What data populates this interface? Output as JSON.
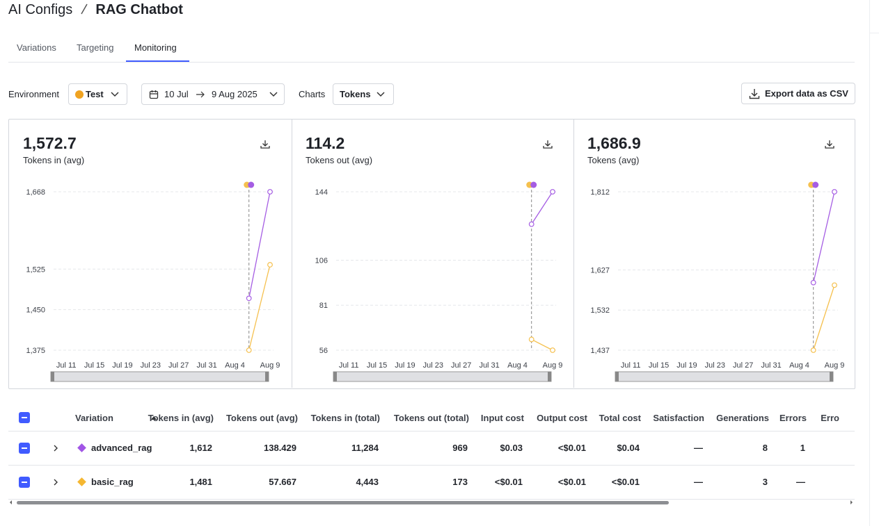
{
  "breadcrumb": [
    "AI Configs",
    "RAG Chatbot"
  ],
  "tabs": [
    "Variations",
    "Targeting",
    "Monitoring"
  ],
  "active_tab": 2,
  "filters": {
    "environment_label": "Environment",
    "environment": "Test",
    "environment_color": "#f0a321",
    "date_from": "10 Jul",
    "date_to": "9 Aug 2025",
    "charts_label": "Charts",
    "charts": "Tokens",
    "export": "Export data as CSV"
  },
  "chart_data": [
    {
      "type": "line",
      "headline": "1,572.7",
      "title": "Tokens in (avg)",
      "xlim": [
        "Jul 9",
        "Aug 9"
      ],
      "xticks": [
        "Jul 11",
        "Jul 15",
        "Jul 19",
        "Jul 23",
        "Jul 27",
        "Jul 31",
        "Aug 4",
        "Aug 9"
      ],
      "ylim": [
        1375,
        1668
      ],
      "yticks": [
        {
          "value": 1375,
          "label": "1,375"
        },
        {
          "value": 1450,
          "label": "1,450"
        },
        {
          "value": 1525,
          "label": "1,525"
        },
        {
          "value": 1668,
          "label": "1,668"
        }
      ],
      "grid": true,
      "series": [
        {
          "color": "#a55de3",
          "x": [
            "Aug 6",
            "Aug 9"
          ],
          "values": [
            1471,
            1668
          ]
        },
        {
          "color": "#f5c04e",
          "x": [
            "Aug 6",
            "Aug 9"
          ],
          "values": [
            1375,
            1533
          ]
        }
      ]
    },
    {
      "type": "line",
      "headline": "114.2",
      "title": "Tokens out (avg)",
      "xlim": [
        "Jul 9",
        "Aug 9"
      ],
      "xticks": [
        "Jul 11",
        "Jul 15",
        "Jul 19",
        "Jul 23",
        "Jul 27",
        "Jul 31",
        "Aug 4",
        "Aug 9"
      ],
      "ylim": [
        56,
        144
      ],
      "yticks": [
        56,
        81,
        106,
        144
      ],
      "grid": true,
      "series": [
        {
          "color": "#a55de3",
          "x": [
            "Aug 6",
            "Aug 9"
          ],
          "values": [
            126,
            144
          ]
        },
        {
          "color": "#f5c04e",
          "x": [
            "Aug 6",
            "Aug 9"
          ],
          "values": [
            62,
            56
          ]
        }
      ]
    },
    {
      "type": "line",
      "headline": "1,686.9",
      "title": "Tokens (avg)",
      "xlim": [
        "Jul 9",
        "Aug 9"
      ],
      "xticks": [
        "Jul 11",
        "Jul 15",
        "Jul 19",
        "Jul 23",
        "Jul 27",
        "Jul 31",
        "Aug 4",
        "Aug 9"
      ],
      "ylim": [
        1437,
        1812
      ],
      "yticks": [
        {
          "value": 1437,
          "label": "1,437"
        },
        {
          "value": 1532,
          "label": "1,532"
        },
        {
          "value": 1627,
          "label": "1,627"
        },
        {
          "value": 1812,
          "label": "1,812"
        }
      ],
      "grid": true,
      "series": [
        {
          "color": "#a55de3",
          "x": [
            "Aug 6",
            "Aug 9"
          ],
          "values": [
            1597,
            1812
          ]
        },
        {
          "color": "#f5c04e",
          "x": [
            "Aug 6",
            "Aug 9"
          ],
          "values": [
            1437,
            1591
          ]
        }
      ]
    }
  ],
  "table": {
    "columns": [
      "Variation",
      "Tokens in (avg)",
      "Tokens out (avg)",
      "Tokens in (total)",
      "Tokens out (total)",
      "Input cost",
      "Output cost",
      "Total cost",
      "Satisfaction",
      "Generations",
      "Errors",
      "Erro"
    ],
    "rows": [
      {
        "variation": "advanced_rag",
        "color": "#a155e6",
        "cells": [
          "1,612",
          "138.429",
          "11,284",
          "969",
          "$0.03",
          "<$0.01",
          "$0.04",
          "—",
          "8",
          "1"
        ]
      },
      {
        "variation": "basic_rag",
        "color": "#f5b731",
        "cells": [
          "1,481",
          "57.667",
          "4,443",
          "173",
          "<$0.01",
          "<$0.01",
          "<$0.01",
          "—",
          "3",
          "—"
        ]
      }
    ]
  }
}
